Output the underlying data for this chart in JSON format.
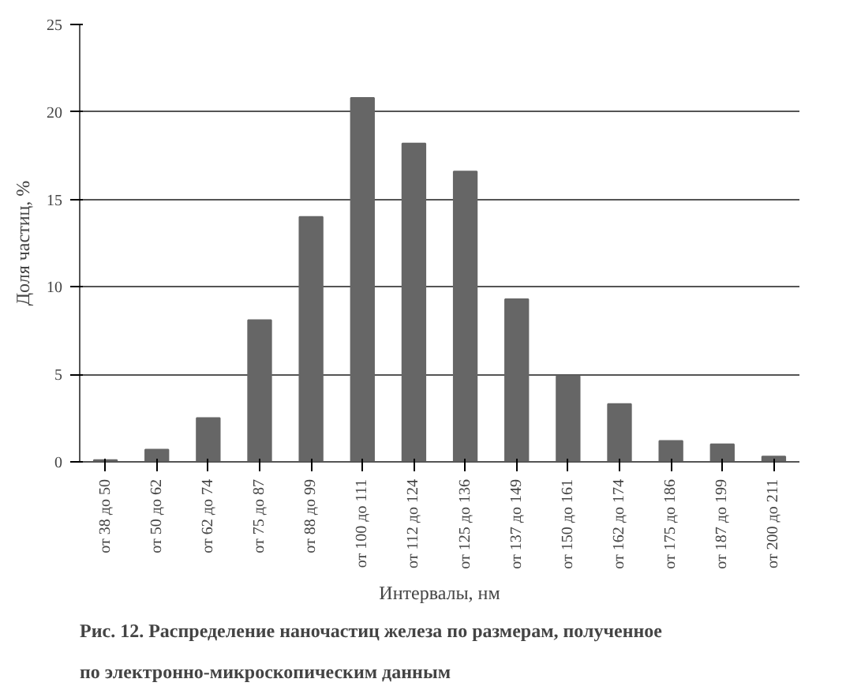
{
  "chart_data": {
    "type": "bar",
    "xlabel": "Интервалы, нм",
    "ylabel": "Доля частиц, %",
    "categories": [
      "от 38 до 50",
      "от 50 до 62",
      "от 62 до 74",
      "от 75 до 87",
      "от 88 до 99",
      "от 100 до 111",
      "от 112 до 124",
      "от 125 до 136",
      "от 137 до 149",
      "от 150 до 161",
      "от 162 до 174",
      "от 175 до 186",
      "от 187 до 199",
      "от 200 до 211"
    ],
    "values": [
      0.1,
      0.7,
      2.5,
      8.1,
      14.0,
      20.8,
      18.2,
      16.6,
      9.3,
      4.9,
      3.3,
      1.2,
      1.0,
      0.3
    ],
    "color": "#666666",
    "ylim": [
      0,
      25
    ],
    "yticks": [
      0,
      5,
      10,
      15,
      20,
      25
    ],
    "grid": "y",
    "annotations": [
      "Рис. 12. Распределение наночастиц железа по размерам, полученное",
      "по электронно-микроскопическим данным"
    ]
  }
}
